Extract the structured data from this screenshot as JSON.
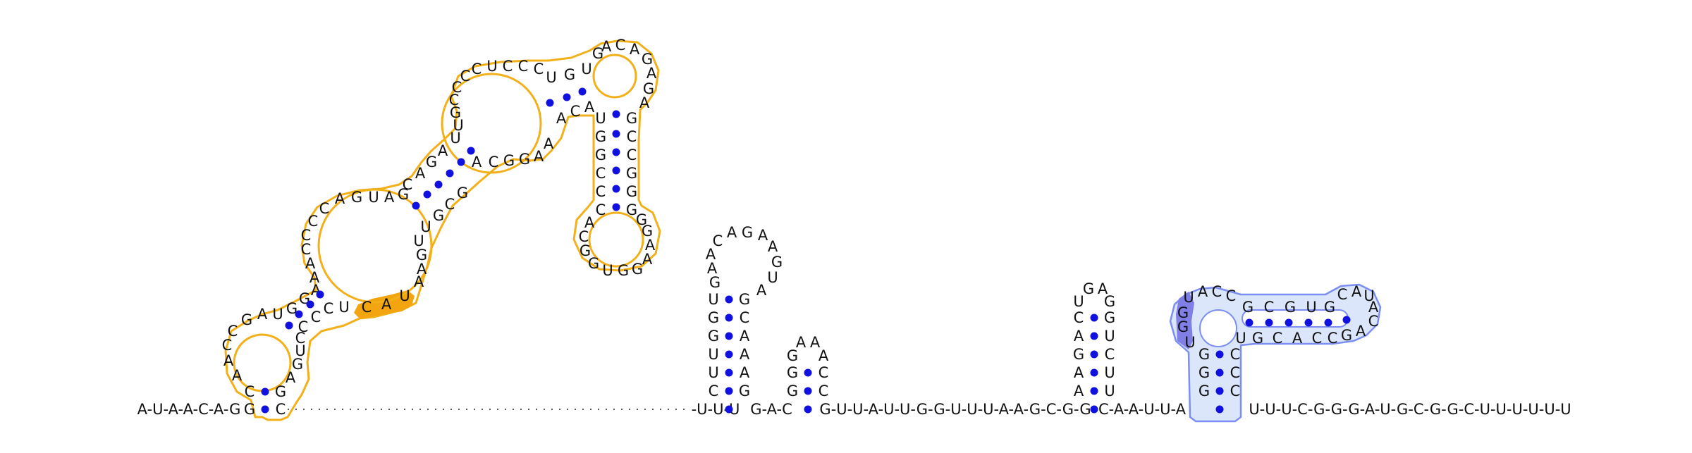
{
  "diagram": {
    "title": "",
    "colors": {
      "pair_dot": "#1010e0",
      "orange_outline": "#f2b01b",
      "orange_highlight": "#f2a50f",
      "blue_outline": "#7c8ef2",
      "blue_fill": "#dbe6fb",
      "blue_highlight": "#7f7fe6"
    },
    "sequences": {
      "backbone_left": "A-U-A-A-C-A-G",
      "backbone_mid1": "-U-U-U",
      "backbone_mid2": "G-A-C",
      "backbone_mid3": "G-U-U-A-U-U-G-G-U-U-U-A-A-G-C-G-G",
      "backbone_mid4": "C-A-A-U-U-A",
      "backbone_right": "U-U-U-C-G-G-G-A-U-G-C-G-G-C-U-U-U-U-U-U"
    }
  }
}
